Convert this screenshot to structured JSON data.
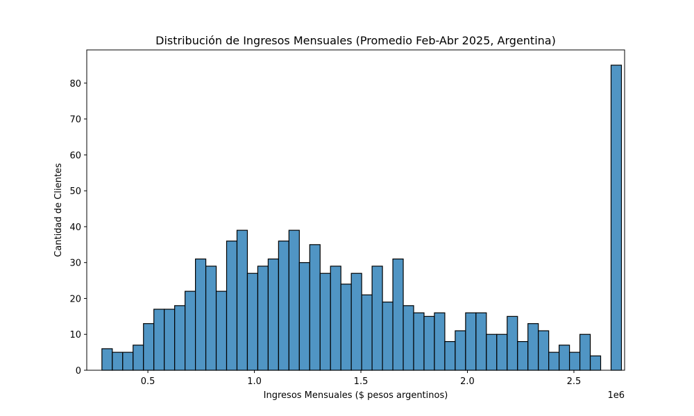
{
  "chart_data": {
    "type": "histogram",
    "title": "Distribución de Ingresos Mensuales (Promedio Feb-Abr 2025, Argentina)",
    "xlabel": "Ingresos Mensuales ($ pesos argentinos)",
    "ylabel": "Cantidad de Clientes",
    "x_offset_text": "1e6",
    "xlim": [
      0.213,
      2.738
    ],
    "ylim": [
      0,
      89.25
    ],
    "xticks": [
      0.5,
      1.0,
      1.5,
      2.0,
      2.5
    ],
    "xtick_labels": [
      "0.5",
      "1.0",
      "1.5",
      "2.0",
      "2.5"
    ],
    "yticks": [
      0,
      10,
      20,
      30,
      40,
      50,
      60,
      70,
      80
    ],
    "ytick_labels": [
      "0",
      "10",
      "20",
      "30",
      "40",
      "50",
      "60",
      "70",
      "80"
    ],
    "bin_start": 0.2842,
    "bin_width": 0.04878,
    "counts": [
      6,
      5,
      5,
      7,
      13,
      17,
      17,
      18,
      22,
      31,
      29,
      22,
      36,
      39,
      27,
      29,
      31,
      36,
      39,
      30,
      35,
      27,
      29,
      24,
      27,
      21,
      29,
      19,
      31,
      18,
      16,
      15,
      16,
      8,
      11,
      16,
      16,
      10,
      10,
      15,
      8,
      13,
      11,
      5,
      7,
      5,
      10,
      4,
      0,
      85
    ],
    "bar_color": "#5095c4",
    "edge_color": "#000000",
    "grid": false
  }
}
